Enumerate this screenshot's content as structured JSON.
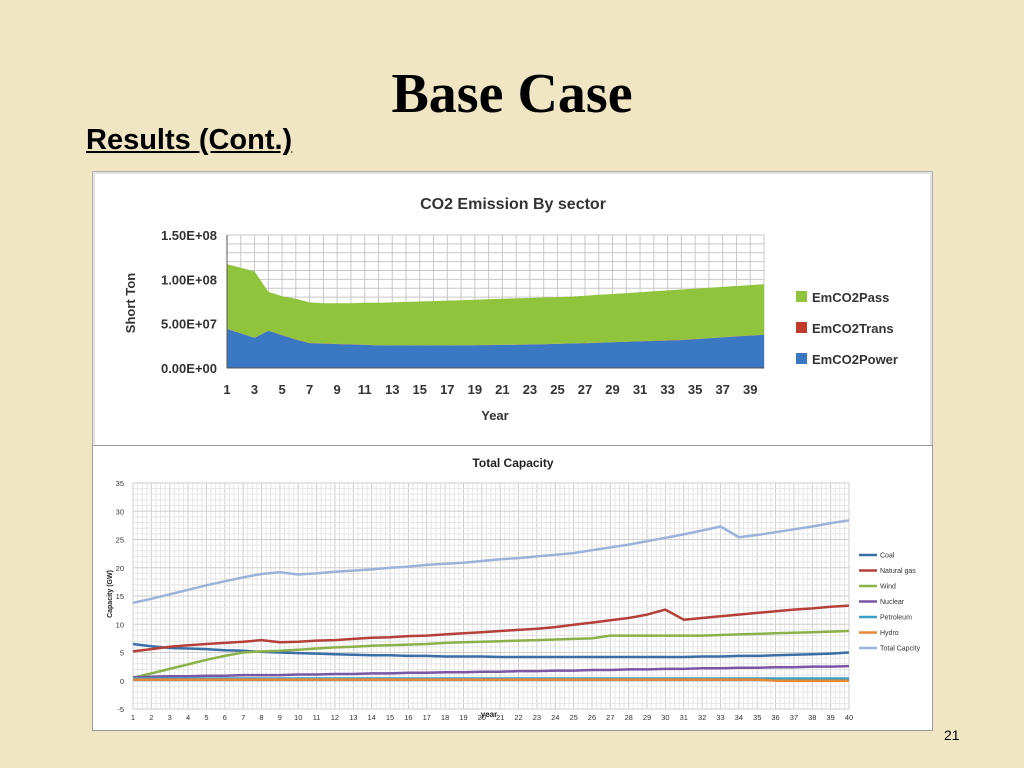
{
  "slide": {
    "title": "Base Case",
    "subtitle": "Results (Cont.)",
    "page_number": "21"
  },
  "chart_data": [
    {
      "type": "area",
      "stacked": true,
      "title": "CO2 Emission By sector",
      "xlabel": "Year",
      "ylabel": "Short Ton",
      "ylim": [
        0,
        150000000
      ],
      "yticks": [
        "0.00E+00",
        "5.00E+07",
        "1.00E+08",
        "1.50E+08"
      ],
      "ytick_values": [
        0,
        50000000,
        100000000,
        150000000
      ],
      "x": [
        1,
        2,
        3,
        4,
        5,
        6,
        7,
        8,
        9,
        10,
        11,
        12,
        13,
        14,
        15,
        16,
        17,
        18,
        19,
        20,
        21,
        22,
        23,
        24,
        25,
        26,
        27,
        28,
        29,
        30,
        31,
        32,
        33,
        34,
        35,
        36,
        37,
        38,
        39,
        40
      ],
      "xtick_labels": [
        "1",
        "3",
        "5",
        "7",
        "9",
        "11",
        "13",
        "15",
        "17",
        "19",
        "21",
        "23",
        "25",
        "27",
        "29",
        "31",
        "33",
        "35",
        "37",
        "39"
      ],
      "grid": true,
      "legend_position": "right",
      "series": [
        {
          "name": "EmCO2Power",
          "color": "#3b78c4",
          "values": [
            44000000,
            39000000,
            34000000,
            42000000,
            37000000,
            32000000,
            28000000,
            27500000,
            27000000,
            26500000,
            26000000,
            25500000,
            25500000,
            25500000,
            25500000,
            25500000,
            25500000,
            25500000,
            25600000,
            25800000,
            26000000,
            26200000,
            26500000,
            26800000,
            27200000,
            27600000,
            28000000,
            28500000,
            29000000,
            29500000,
            30000000,
            30500000,
            31000000,
            31500000,
            32500000,
            33500000,
            34500000,
            35500000,
            36500000,
            37500000
          ]
        },
        {
          "name": "EmCO2Trans",
          "color": "#c0392b",
          "values": [
            200000,
            200000,
            200000,
            200000,
            200000,
            200000,
            200000,
            200000,
            200000,
            200000,
            200000,
            200000,
            200000,
            200000,
            200000,
            200000,
            200000,
            200000,
            200000,
            200000,
            200000,
            200000,
            200000,
            200000,
            200000,
            200000,
            200000,
            200000,
            200000,
            200000,
            200000,
            200000,
            200000,
            200000,
            200000,
            200000,
            200000,
            200000,
            200000,
            200000
          ]
        },
        {
          "name": "EmCO2Pass",
          "color": "#8fc43c",
          "values": [
            72800000,
            73800000,
            74800000,
            43800000,
            43800000,
            45800000,
            45800000,
            45300000,
            45800000,
            46300000,
            47300000,
            47800000,
            48300000,
            48800000,
            49300000,
            49800000,
            50300000,
            50800000,
            51200000,
            51500000,
            51800000,
            52100000,
            52300000,
            52500000,
            52600000,
            52700000,
            53300000,
            53800000,
            54300000,
            54800000,
            55300000,
            55800000,
            56300000,
            56800000,
            56800000,
            56800000,
            56800000,
            56800000,
            56800000,
            56800000
          ]
        }
      ]
    },
    {
      "type": "line",
      "title": "Total Capacity",
      "xlabel": "year",
      "ylabel": "Capacity (GW)",
      "ylim": [
        -5,
        35
      ],
      "yticks": [
        "-5",
        "0",
        "5",
        "10",
        "15",
        "20",
        "25",
        "30",
        "35"
      ],
      "ytick_values": [
        -5,
        0,
        5,
        10,
        15,
        20,
        25,
        30,
        35
      ],
      "x": [
        1,
        2,
        3,
        4,
        5,
        6,
        7,
        8,
        9,
        10,
        11,
        12,
        13,
        14,
        15,
        16,
        17,
        18,
        19,
        20,
        21,
        22,
        23,
        24,
        25,
        26,
        27,
        28,
        29,
        30,
        31,
        32,
        33,
        34,
        35,
        36,
        37,
        38,
        39,
        40
      ],
      "xtick_labels": [
        "1",
        "2",
        "3",
        "4",
        "5",
        "6",
        "7",
        "8",
        "9",
        "10",
        "11",
        "12",
        "13",
        "14",
        "15",
        "16",
        "17",
        "18",
        "19",
        "20",
        "21",
        "22",
        "23",
        "24",
        "25",
        "26",
        "27",
        "28",
        "29",
        "30",
        "31",
        "32",
        "33",
        "34",
        "35",
        "36",
        "37",
        "38",
        "39",
        "40"
      ],
      "grid": true,
      "legend_position": "right",
      "series": [
        {
          "name": "Coal",
          "color": "#3a6ea5",
          "values": [
            6.5,
            6.1,
            5.8,
            5.7,
            5.6,
            5.4,
            5.3,
            5.1,
            5.0,
            4.9,
            4.8,
            4.7,
            4.6,
            4.5,
            4.5,
            4.4,
            4.4,
            4.3,
            4.3,
            4.3,
            4.2,
            4.2,
            4.2,
            4.2,
            4.2,
            4.2,
            4.2,
            4.2,
            4.2,
            4.2,
            4.2,
            4.3,
            4.3,
            4.4,
            4.4,
            4.5,
            4.6,
            4.7,
            4.8,
            5.0
          ]
        },
        {
          "name": "Natural gas",
          "color": "#b5403a",
          "values": [
            5.2,
            5.6,
            6.0,
            6.3,
            6.5,
            6.7,
            6.9,
            7.2,
            6.8,
            6.9,
            7.1,
            7.2,
            7.4,
            7.6,
            7.7,
            7.9,
            8.0,
            8.2,
            8.4,
            8.6,
            8.8,
            9.0,
            9.2,
            9.5,
            9.9,
            10.3,
            10.7,
            11.1,
            11.7,
            12.6,
            10.8,
            11.1,
            11.4,
            11.7,
            12.0,
            12.3,
            12.6,
            12.8,
            13.1,
            13.3
          ]
        },
        {
          "name": "Wind",
          "color": "#8db14a",
          "values": [
            0.5,
            1.3,
            2.1,
            2.9,
            3.7,
            4.4,
            5.0,
            5.2,
            5.3,
            5.5,
            5.7,
            5.9,
            6.0,
            6.2,
            6.3,
            6.4,
            6.5,
            6.7,
            6.8,
            6.9,
            7.0,
            7.1,
            7.2,
            7.3,
            7.4,
            7.5,
            8.0,
            8.0,
            8.0,
            8.0,
            8.0,
            8.0,
            8.1,
            8.2,
            8.3,
            8.4,
            8.5,
            8.6,
            8.7,
            8.8
          ]
        },
        {
          "name": "Nuclear",
          "color": "#7a56a6",
          "values": [
            0.6,
            0.7,
            0.8,
            0.8,
            0.9,
            0.9,
            1.0,
            1.0,
            1.0,
            1.1,
            1.1,
            1.2,
            1.2,
            1.3,
            1.3,
            1.4,
            1.4,
            1.5,
            1.5,
            1.6,
            1.6,
            1.7,
            1.7,
            1.8,
            1.8,
            1.9,
            1.9,
            2.0,
            2.0,
            2.1,
            2.1,
            2.2,
            2.2,
            2.3,
            2.3,
            2.4,
            2.4,
            2.5,
            2.5,
            2.6
          ]
        },
        {
          "name": "Petroleum",
          "color": "#3aa0c8",
          "values": [
            0.4,
            0.4,
            0.4,
            0.4,
            0.4,
            0.4,
            0.4,
            0.4,
            0.4,
            0.4,
            0.4,
            0.4,
            0.4,
            0.4,
            0.4,
            0.4,
            0.4,
            0.4,
            0.4,
            0.4,
            0.4,
            0.4,
            0.4,
            0.4,
            0.4,
            0.4,
            0.4,
            0.4,
            0.4,
            0.4,
            0.4,
            0.4,
            0.4,
            0.4,
            0.4,
            0.4,
            0.4,
            0.4,
            0.4,
            0.4
          ]
        },
        {
          "name": "Hydro",
          "color": "#e8893a",
          "values": [
            0.2,
            0.2,
            0.2,
            0.2,
            0.2,
            0.2,
            0.2,
            0.2,
            0.2,
            0.2,
            0.2,
            0.2,
            0.2,
            0.2,
            0.2,
            0.2,
            0.2,
            0.2,
            0.2,
            0.2,
            0.2,
            0.2,
            0.2,
            0.2,
            0.2,
            0.2,
            0.2,
            0.2,
            0.2,
            0.2,
            0.2,
            0.2,
            0.2,
            0.2,
            0.2,
            0.0,
            0.0,
            0.0,
            0.0,
            0.0
          ]
        },
        {
          "name": "Total Capcity",
          "color": "#9bb3d8",
          "values": [
            13.8,
            14.5,
            15.3,
            16.1,
            16.9,
            17.6,
            18.3,
            18.9,
            19.2,
            18.8,
            19.0,
            19.3,
            19.5,
            19.7,
            20.0,
            20.2,
            20.5,
            20.7,
            20.9,
            21.2,
            21.5,
            21.7,
            22.0,
            22.3,
            22.6,
            23.1,
            23.6,
            24.1,
            24.7,
            25.3,
            25.9,
            26.6,
            27.3,
            25.4,
            25.8,
            26.3,
            26.8,
            27.3,
            27.9,
            28.4
          ]
        }
      ]
    }
  ]
}
